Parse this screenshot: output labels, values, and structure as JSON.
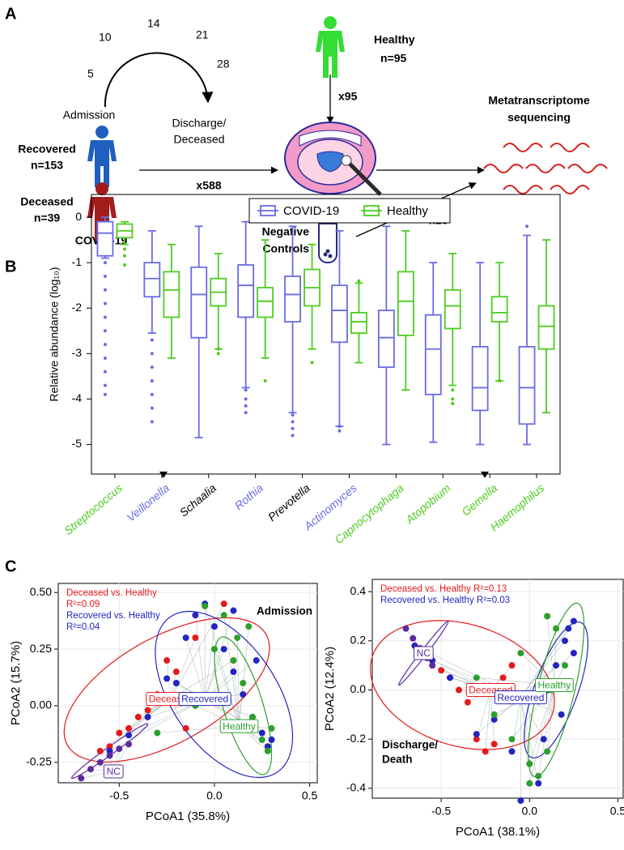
{
  "panel_letters": [
    "A",
    "B",
    "C"
  ],
  "panel_a": {
    "days": [
      "5",
      "10",
      "14",
      "21",
      "28"
    ],
    "admission": "Admission",
    "discharge": [
      "Discharge/",
      "Deceased"
    ],
    "recovered": [
      "Recovered",
      "n=153"
    ],
    "deceased": [
      "Deceased",
      "n=39"
    ],
    "covid": "COVID-19",
    "healthy": [
      "Healthy",
      "n=95"
    ],
    "x95": "x95",
    "x588": "x588",
    "negative": [
      "Negative",
      "Controls"
    ],
    "x18": "x18",
    "sequencing": [
      "Metatranscriptome",
      "sequencing"
    ]
  },
  "chart_data": [
    {
      "type": "box",
      "ylabel": "Relative abundance (log₁₀)",
      "ylim": [
        -5.65,
        0.5
      ],
      "yticks": [
        0,
        -1,
        -2,
        -3,
        -4,
        -5
      ],
      "categories": [
        "Streptococcus",
        "Veillonella",
        "Schaalia",
        "Rothia",
        "Prevotella",
        "Actinomyces",
        "Capnocytophaga",
        "Atopobium",
        "Gemella",
        "Haemophilus"
      ],
      "category_colors": [
        "#4dcc1f",
        "#6a6ae6",
        "#000000",
        "#6a6ae6",
        "#000000",
        "#6a6ae6",
        "#4dcc1f",
        "#4dcc1f",
        "#4dcc1f",
        "#4dcc1f"
      ],
      "series": [
        {
          "name": "COVID-19",
          "color": "#6a6ae6",
          "stats": [
            [
              -0.9,
              -0.85,
              -0.35,
              -0.1,
              0
            ],
            [
              -2.55,
              -1.75,
              -1.35,
              -1.0,
              -0.3
            ],
            [
              -4.85,
              -2.65,
              -1.7,
              -1.1,
              -0.2
            ],
            [
              -3.75,
              -2.2,
              -1.5,
              -1.05,
              -0.1
            ],
            [
              -4.3,
              -2.3,
              -1.7,
              -1.3,
              -0.2
            ],
            [
              -4.6,
              -2.75,
              -2.05,
              -1.5,
              -0.3
            ],
            [
              -5.0,
              -3.3,
              -2.65,
              -2.05,
              -0.2
            ],
            [
              -4.95,
              -3.9,
              -2.9,
              -2.15,
              -1.0
            ],
            [
              -5.0,
              -4.25,
              -3.75,
              -2.85,
              -1.0
            ],
            [
              -5.0,
              -4.55,
              -3.75,
              -2.85,
              -0.4
            ]
          ],
          "outliers": [
            [
              -1.0,
              -1.3,
              -1.6,
              -1.9,
              -2.2,
              -2.5,
              -2.8,
              -3.1,
              -3.4,
              -3.7,
              -3.9
            ],
            [
              -2.7,
              -3.0,
              -3.3,
              -3.6,
              -3.9,
              -4.2,
              -4.5
            ],
            [],
            [
              -3.8,
              -4.0,
              -4.15,
              -4.3
            ],
            [
              -4.35,
              -4.5,
              -4.65,
              -4.8
            ],
            [
              -4.6,
              -4.7
            ],
            [],
            [],
            [],
            [
              -0.2
            ]
          ]
        },
        {
          "name": "Healthy",
          "color": "#4dcc1f",
          "stats": [
            [
              -0.6,
              -0.45,
              -0.3,
              -0.15,
              -0.1
            ],
            [
              -3.1,
              -2.2,
              -1.6,
              -1.2,
              -0.6
            ],
            [
              -2.9,
              -1.95,
              -1.65,
              -1.35,
              -0.8
            ],
            [
              -3.1,
              -2.2,
              -1.85,
              -1.55,
              -0.5
            ],
            [
              -2.9,
              -1.95,
              -1.55,
              -1.15,
              -0.6
            ],
            [
              -3.2,
              -2.55,
              -2.3,
              -2.1,
              -1.45
            ],
            [
              -3.8,
              -2.6,
              -1.85,
              -1.2,
              -0.3
            ],
            [
              -3.7,
              -2.45,
              -1.95,
              -1.6,
              -0.8
            ],
            [
              -3.6,
              -2.3,
              -2.1,
              -1.75,
              -1.0
            ],
            [
              -4.3,
              -2.9,
              -2.4,
              -1.95,
              -0.5
            ]
          ],
          "outliers": [
            [
              -0.7,
              -0.85,
              -1.05
            ],
            [],
            [
              -3.0,
              -2.9
            ],
            [
              -3.6
            ],
            [
              -3.2
            ],
            [
              -1.4
            ],
            [],
            [
              -3.8,
              -4.0,
              -4.1
            ],
            [
              -3.6
            ],
            []
          ]
        }
      ]
    },
    {
      "type": "scatter",
      "title": "Admission",
      "xlabel": "PCoA1 (35.8%)",
      "ylabel": "PCoA2 (15.7%)",
      "xlim": [
        -0.82,
        0.54
      ],
      "ylim": [
        -0.34,
        0.54
      ],
      "xticks": [
        -0.5,
        {
          "value": 0,
          "label": "0.0"
        },
        0.5
      ],
      "yticks": [
        {
          "value": 0.5,
          "label": "0.50"
        },
        0.25,
        {
          "value": 0,
          "label": "0.00"
        },
        -0.25
      ],
      "annotations": [
        {
          "lines": [
            "Deceased vs. Healthy",
            "R²=0.09"
          ],
          "color": "#e31a1c"
        },
        {
          "lines": [
            "Recovered vs. Healthy",
            "R²=0.04"
          ],
          "color": "#2424c0"
        }
      ],
      "series": [
        {
          "name": "Deceased",
          "color": "#e31a1c",
          "x": [
            -0.6,
            -0.55,
            -0.5,
            -0.45,
            -0.4,
            -0.35,
            -0.3,
            -0.25,
            -0.2,
            -0.15,
            -0.1,
            0.05,
            0.1
          ],
          "y": [
            -0.2,
            -0.18,
            -0.12,
            -0.1,
            -0.05,
            -0.02,
            0.05,
            0.2,
            0.15,
            -0.1,
            0.3,
            0.45,
            0.2
          ],
          "label_at": [
            -0.23,
            0.03
          ],
          "ellipse": {
            "center": [
              -0.25,
              0.07
            ],
            "axis1": [
              0.53,
              0.23
            ],
            "axis2": [
              -0.1,
              0.22
            ]
          }
        },
        {
          "name": "Recovered",
          "color": "#2424c0",
          "x": [
            -0.55,
            -0.45,
            -0.35,
            -0.25,
            -0.15,
            -0.1,
            -0.05,
            0.0,
            0.05,
            0.1,
            0.15,
            0.2,
            0.25,
            0.28,
            0.3,
            -0.2,
            0.1,
            0.22
          ],
          "y": [
            -0.2,
            -0.13,
            -0.05,
            0.12,
            0.3,
            0.4,
            0.45,
            0.35,
            0.25,
            0.15,
            0.05,
            -0.05,
            -0.12,
            -0.18,
            -0.15,
            0.1,
            0.42,
            0.2
          ],
          "label_at": [
            -0.05,
            0.03
          ],
          "ellipse": {
            "center": [
              0.05,
              0.05
            ],
            "axis1": [
              0.3,
              -0.33
            ],
            "axis2": [
              0.2,
              0.16
            ]
          }
        },
        {
          "name": "Healthy",
          "color": "#2ca02c",
          "x": [
            -0.3,
            -0.1,
            0.0,
            0.05,
            0.1,
            0.15,
            0.2,
            0.25,
            0.28,
            0.3,
            0.12,
            -0.05,
            0.18
          ],
          "y": [
            -0.12,
            0.0,
            0.25,
            0.4,
            0.2,
            0.1,
            -0.05,
            -0.15,
            -0.2,
            -0.1,
            0.3,
            0.44,
            0.35
          ],
          "label_at": [
            0.13,
            -0.09
          ],
          "ellipse": {
            "center": [
              0.15,
              0.0
            ],
            "axis1": [
              0.12,
              -0.3
            ],
            "axis2": [
              0.09,
              0.05
            ]
          }
        },
        {
          "name": "NC",
          "color": "#5b2c9e",
          "x": [
            -0.7,
            -0.65,
            -0.6,
            -0.55,
            -0.5,
            -0.45
          ],
          "y": [
            -0.32,
            -0.28,
            -0.25,
            -0.22,
            -0.19,
            -0.17
          ],
          "label_at": [
            -0.53,
            -0.29
          ],
          "ellipse": {
            "center": [
              -0.55,
              -0.2
            ],
            "axis1": [
              0.2,
              0.12
            ],
            "axis2": [
              0.01,
              -0.015
            ]
          }
        }
      ]
    },
    {
      "type": "scatter",
      "title": [
        "Discharge/",
        "Death"
      ],
      "xlabel": "PCoA1 (38.1%)",
      "ylabel": "PCoA2 (12.4%)",
      "xlim": [
        -0.89,
        0.53
      ],
      "ylim": [
        -0.44,
        0.45
      ],
      "xticks": [
        -0.5,
        {
          "value": 0,
          "label": "0.0"
        },
        0.5
      ],
      "yticks": [
        0.4,
        0.2,
        {
          "value": 0,
          "label": "0.0"
        },
        -0.2,
        -0.4
      ],
      "annotations": [
        {
          "lines": [
            "Deceased vs. Healthy R²=0.13"
          ],
          "color": "#e31a1c"
        },
        {
          "lines": [
            "Recovered vs. Healthy R²=0.03"
          ],
          "color": "#2424c0"
        }
      ],
      "series": [
        {
          "name": "Deceased",
          "color": "#e31a1c",
          "x": [
            -0.6,
            -0.55,
            -0.5,
            -0.45,
            -0.4,
            -0.35,
            -0.3,
            -0.25,
            -0.2,
            -0.15,
            -0.1
          ],
          "y": [
            0.14,
            0.1,
            0.08,
            0.05,
            0.0,
            -0.05,
            -0.2,
            -0.25,
            -0.22,
            0.05,
            0.1
          ],
          "label_at": [
            -0.22,
            0.0
          ],
          "ellipse": {
            "center": [
              -0.38,
              0.02
            ],
            "axis1": [
              0.52,
              -0.08
            ],
            "axis2": [
              0.03,
              0.25
            ]
          }
        },
        {
          "name": "Recovered",
          "color": "#2424c0",
          "x": [
            -0.65,
            -0.55,
            -0.45,
            -0.3,
            -0.2,
            -0.1,
            0.0,
            0.05,
            0.1,
            0.15,
            0.2,
            0.22,
            0.25,
            0.25,
            0.18,
            -0.05,
            0.08
          ],
          "y": [
            0.18,
            0.12,
            0.05,
            -0.18,
            -0.12,
            -0.25,
            -0.3,
            -0.38,
            0.0,
            0.1,
            0.2,
            0.25,
            0.28,
            0.15,
            -0.1,
            -0.45,
            -0.2
          ],
          "label_at": [
            -0.05,
            -0.03
          ],
          "ellipse": {
            "center": [
              0.15,
              0.0
            ],
            "axis1": [
              0.15,
              0.27
            ],
            "axis2": [
              0.1,
              -0.06
            ]
          }
        },
        {
          "name": "Healthy",
          "color": "#2ca02c",
          "x": [
            -0.3,
            -0.2,
            -0.1,
            0.0,
            0.05,
            0.1,
            0.15,
            0.2,
            0.1,
            -0.05,
            0.12,
            0.0
          ],
          "y": [
            0.05,
            -0.1,
            -0.2,
            -0.3,
            -0.35,
            0.3,
            0.25,
            0.1,
            -0.25,
            0.15,
            0.0,
            -0.38
          ],
          "label_at": [
            0.14,
            0.02
          ],
          "ellipse": {
            "center": [
              0.15,
              0.0
            ],
            "axis1": [
              0.13,
              0.35
            ],
            "axis2": [
              0.09,
              -0.05
            ]
          }
        },
        {
          "name": "NC",
          "color": "#5b2c9e",
          "x": [
            -0.7,
            -0.66,
            -0.62,
            -0.58,
            -0.55
          ],
          "y": [
            0.25,
            0.21,
            0.17,
            0.13,
            0.1
          ],
          "label_at": [
            -0.6,
            0.15
          ],
          "ellipse": {
            "center": [
              -0.6,
              0.15
            ],
            "axis1": [
              0.14,
              0.13
            ],
            "axis2": [
              0.01,
              -0.01
            ]
          }
        }
      ]
    }
  ]
}
